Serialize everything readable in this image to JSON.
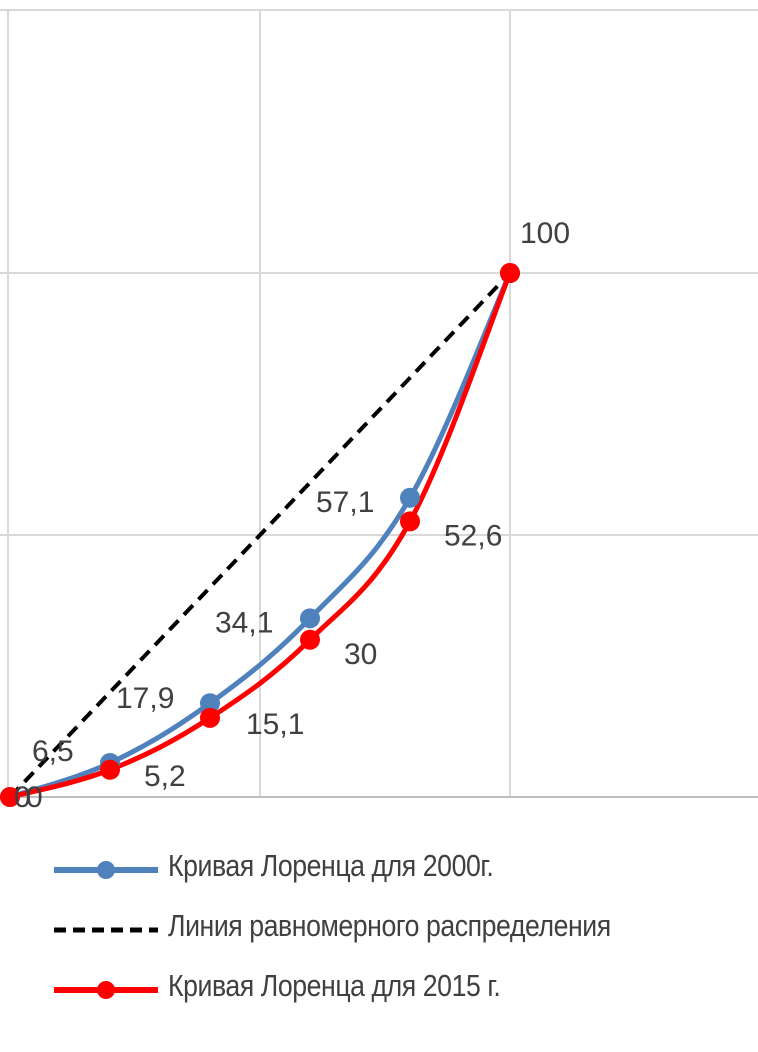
{
  "chart_data": {
    "type": "line",
    "x": [
      0,
      20,
      40,
      60,
      80,
      100
    ],
    "xlim": [
      0,
      100
    ],
    "ylim": [
      0,
      100
    ],
    "grid": true,
    "legend_position": "bottom",
    "series": [
      {
        "name": "Кривая Лоренца для 2000г.",
        "color": "#4f81bd",
        "style": "solid-with-markers",
        "x": [
          0,
          20,
          40,
          60,
          80,
          100
        ],
        "values": [
          0,
          6.5,
          17.9,
          34.1,
          57.1,
          100
        ],
        "labels": [
          "0",
          "6,5",
          "17,9",
          "34,1",
          "57,1",
          "100"
        ]
      },
      {
        "name": "Линия равномерного распределения",
        "color": "#000000",
        "style": "dashed",
        "x": [
          0,
          100
        ],
        "values": [
          0,
          100
        ]
      },
      {
        "name": "Кривая Лоренца для 2015 г.",
        "color": "#ff0000",
        "style": "solid-with-markers",
        "x": [
          0,
          20,
          40,
          60,
          80,
          100
        ],
        "values": [
          0,
          5.2,
          15.1,
          30,
          52.6,
          100
        ],
        "labels": [
          "0",
          "5,2",
          "15,1",
          "30",
          "52,6",
          "100"
        ]
      }
    ]
  }
}
